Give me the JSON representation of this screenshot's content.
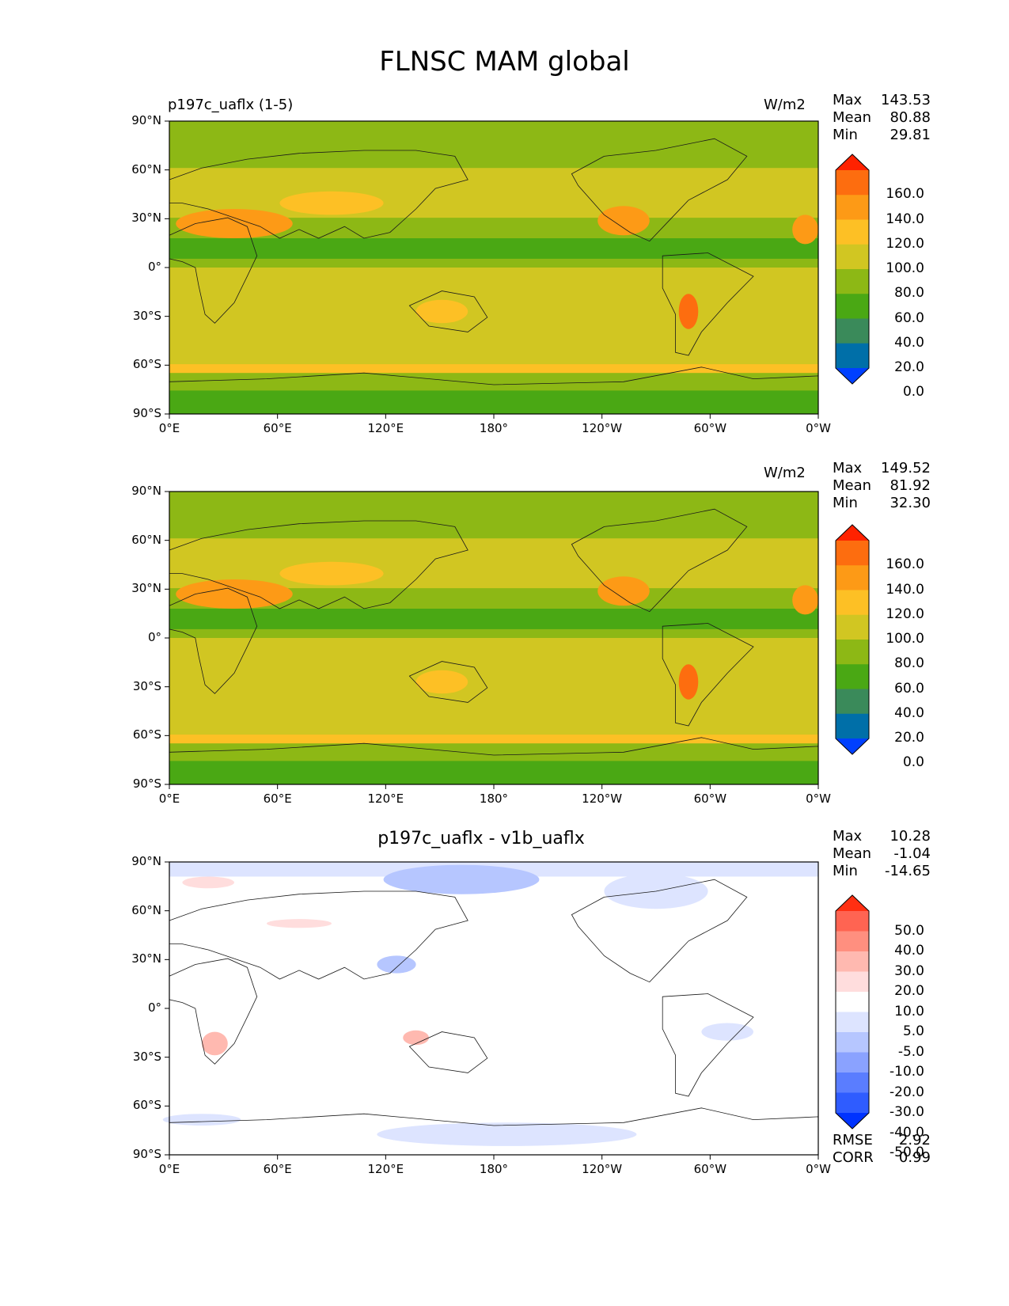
{
  "figure": {
    "title": "FLNSC MAM global"
  },
  "colors": {
    "ocean_fill": "#d1c622",
    "coast": "#1a1a1a",
    "cbar_test": [
      "#0040ff",
      "#006fa8",
      "#3a8a5a",
      "#4aa814",
      "#8db815",
      "#d1c622",
      "#fdc025",
      "#fd9a16",
      "#fd6d0f",
      "#ff2200"
    ],
    "cbar_diff": [
      "#0033ff",
      "#2f5cff",
      "#5a7dff",
      "#8aa2ff",
      "#b6c6ff",
      "#dde4ff",
      "#ffffff",
      "#ffdddd",
      "#ffb9b0",
      "#ff8f7f",
      "#ff6452",
      "#ff2f12"
    ]
  },
  "panels": [
    {
      "id": "test",
      "left_title": "p197c_uaflx (1-5)",
      "center_title": "",
      "units": "W/m2",
      "stats": [
        {
          "label": "Max",
          "value": "143.53"
        },
        {
          "label": "Mean",
          "value": "80.88"
        },
        {
          "label": "Min",
          "value": "29.81"
        }
      ],
      "colorbar": [
        "160.0",
        "140.0",
        "120.0",
        "100.0",
        "80.0",
        "60.0",
        "40.0",
        "20.0",
        "0.0"
      ],
      "extra_stats": []
    },
    {
      "id": "reference",
      "left_title": "",
      "center_title": "",
      "units": "W/m2",
      "stats": [
        {
          "label": "Max",
          "value": "149.52"
        },
        {
          "label": "Mean",
          "value": "81.92"
        },
        {
          "label": "Min",
          "value": "32.30"
        }
      ],
      "colorbar": [
        "160.0",
        "140.0",
        "120.0",
        "100.0",
        "80.0",
        "60.0",
        "40.0",
        "20.0",
        "0.0"
      ],
      "extra_stats": []
    },
    {
      "id": "difference",
      "left_title": "",
      "center_title": "p197c_uaflx - v1b_uaflx",
      "units": "",
      "stats": [
        {
          "label": "Max",
          "value": "10.28"
        },
        {
          "label": "Mean",
          "value": "-1.04"
        },
        {
          "label": "Min",
          "value": "-14.65"
        }
      ],
      "colorbar": [
        "50.0",
        "40.0",
        "30.0",
        "20.0",
        "10.0",
        "5.0",
        "-5.0",
        "-10.0",
        "-20.0",
        "-30.0",
        "-40.0",
        "-50.0"
      ],
      "extra_stats": [
        {
          "label": "RMSE",
          "value": "2.92"
        },
        {
          "label": "CORR",
          "value": "0.99"
        }
      ]
    }
  ],
  "axes": {
    "lat_ticks": [
      "90°N",
      "60°N",
      "30°N",
      "0°",
      "30°S",
      "60°S",
      "90°S"
    ],
    "lon_ticks": [
      "0°E",
      "60°E",
      "120°E",
      "180°",
      "120°W",
      "60°W",
      "0°W"
    ]
  }
}
